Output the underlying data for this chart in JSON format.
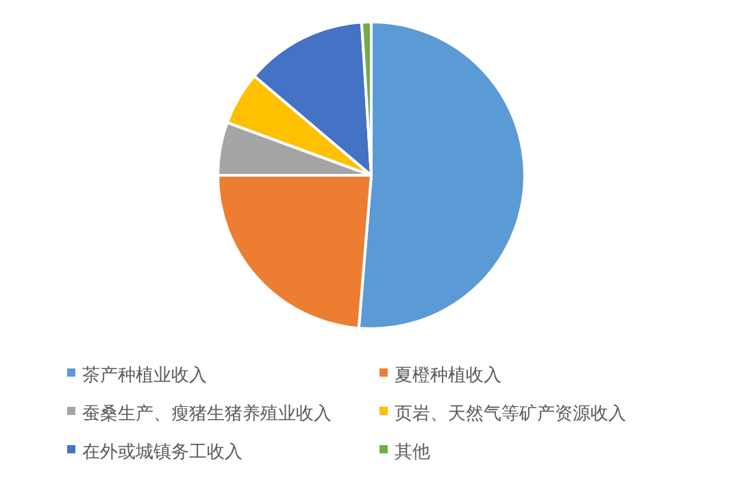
{
  "chart_data": {
    "type": "pie",
    "categories": [
      "茶产种植业收入",
      "夏橙种植收入",
      "蚕桑生产、瘦猪生猪养殖业收入",
      "页岩、天然气等矿产资源收入",
      "在外或城镇务工收入",
      "其他"
    ],
    "values": [
      51.3,
      23.7,
      5.6,
      5.6,
      12.8,
      1.0
    ],
    "colors": [
      "#5b9bd5",
      "#ed7d31",
      "#a5a5a5",
      "#ffc000",
      "#4472c4",
      "#70ad47"
    ],
    "legend": "bottom"
  }
}
